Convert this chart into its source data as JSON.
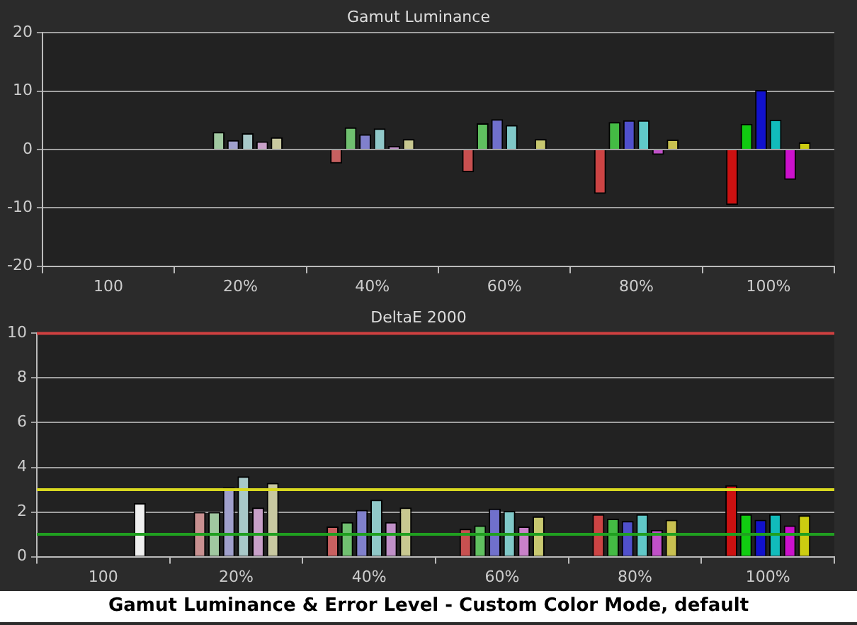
{
  "chart_data": [
    {
      "type": "bar",
      "title": "Gamut Luminance",
      "categories": [
        "100",
        "20%",
        "40%",
        "60%",
        "80%",
        "100%"
      ],
      "ylim": [
        -20,
        20
      ],
      "yticks": [
        -20,
        -10,
        0,
        10,
        20
      ],
      "grid": "y",
      "legend": false,
      "series": [
        {
          "colors": [
            "#cc4444",
            "#c89090",
            "#c86060",
            "#c85050",
            "#cc4444",
            "#cc1111"
          ],
          "values": [
            null,
            0,
            -2.4,
            -3.9,
            -7.6,
            -9.5
          ]
        },
        {
          "colors": [
            "#60c060",
            "#a0c8a0",
            "#70c070",
            "#60c060",
            "#44bb44",
            "#11cc11"
          ],
          "values": [
            null,
            3.0,
            3.8,
            4.5,
            4.7,
            4.4
          ]
        },
        {
          "colors": [
            "#6060c0",
            "#a0a0cc",
            "#8080cc",
            "#7070cc",
            "#5050cc",
            "#1111cc"
          ],
          "values": [
            null,
            1.6,
            2.6,
            5.2,
            5.0,
            10.2
          ]
        },
        {
          "colors": [
            "#60c0c0",
            "#a8c8c8",
            "#90c8c8",
            "#80c8c8",
            "#60c8c8",
            "#11bbbb"
          ],
          "values": [
            null,
            2.8,
            3.6,
            4.2,
            5.0,
            5.1
          ]
        },
        {
          "colors": [
            "#c060c0",
            "#c8a0c8",
            "#c090c8",
            "#c880c8",
            "#c050c8",
            "#cc11cc"
          ],
          "values": [
            null,
            1.4,
            0.6,
            null,
            -0.9,
            -5.2
          ]
        },
        {
          "colors": [
            "#f0f0f0",
            "#c8c8a0",
            "#c8c890",
            "#c8c870",
            "#c8c050",
            "#cccc11"
          ],
          "values": [
            0,
            2.1,
            1.8,
            1.8,
            1.7,
            1.2
          ]
        }
      ]
    },
    {
      "type": "bar",
      "title": "DeltaE 2000",
      "categories": [
        "100",
        "20%",
        "40%",
        "60%",
        "80%",
        "100%"
      ],
      "ylim": [
        0,
        10
      ],
      "yticks": [
        0,
        2,
        4,
        6,
        8,
        10
      ],
      "grid": "y",
      "legend": false,
      "series": [
        {
          "colors": [
            "#cc4444",
            "#c89090",
            "#c86060",
            "#c85050",
            "#cc4444",
            "#cc1111"
          ],
          "values": [
            null,
            2.0,
            1.35,
            1.25,
            1.9,
            3.2
          ]
        },
        {
          "colors": [
            "#60c060",
            "#a0c8a0",
            "#70c070",
            "#60c060",
            "#44bb44",
            "#11cc11"
          ],
          "values": [
            null,
            2.0,
            1.55,
            1.4,
            1.7,
            1.9
          ]
        },
        {
          "colors": [
            "#6060c0",
            "#a0a0cc",
            "#8080cc",
            "#7070cc",
            "#5050cc",
            "#1111cc"
          ],
          "values": [
            null,
            3.1,
            2.1,
            2.15,
            1.6,
            1.65
          ]
        },
        {
          "colors": [
            "#60c0c0",
            "#a8c8c8",
            "#90c8c8",
            "#80c8c8",
            "#60c8c8",
            "#11bbbb"
          ],
          "values": [
            null,
            3.6,
            2.55,
            2.05,
            1.9,
            1.9
          ]
        },
        {
          "colors": [
            "#c060c0",
            "#c8a0c8",
            "#c090c8",
            "#c880c8",
            "#c050c8",
            "#cc11cc"
          ],
          "values": [
            null,
            2.2,
            1.55,
            1.35,
            1.2,
            1.4
          ]
        },
        {
          "colors": [
            "#f0f0f0",
            "#c8c8a0",
            "#c8c890",
            "#c8c870",
            "#c8c050",
            "#cccc11"
          ],
          "values": [
            2.4,
            3.3,
            2.2,
            1.8,
            1.65,
            1.85
          ]
        }
      ],
      "ref_lines": [
        {
          "axis": "y",
          "value": 10,
          "color": "#d04040"
        },
        {
          "axis": "y",
          "value": 3,
          "color": "#d8d820"
        },
        {
          "axis": "y",
          "value": 1,
          "color": "#20a020"
        }
      ],
      "annotations": [
        "Gamut Luminance & Error Level - Custom Color Mode, default"
      ]
    }
  ]
}
